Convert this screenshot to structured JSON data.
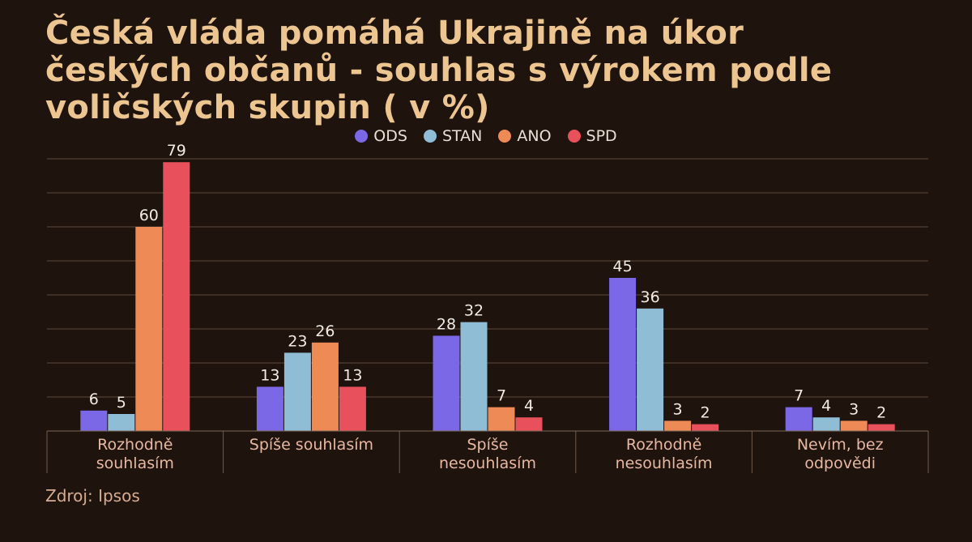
{
  "title_lines": [
    "Česká vláda pomáhá Ukrajině na úkor",
    "českých občanů - souhlas s výrokem podle",
    "voličských skupin ( v %)"
  ],
  "source": "Zdroj: Ipsos",
  "chart_data": {
    "type": "bar",
    "title": "Česká vláda pomáhá Ukrajině na úkor českých občanů - souhlas s výrokem podle voličských skupin ( v %)",
    "categories": [
      [
        "Rozhodně",
        "souhlasím"
      ],
      [
        "Spíše souhlasím"
      ],
      [
        "Spíše",
        "nesouhlasím"
      ],
      [
        "Rozhodně",
        "nesouhlasím"
      ],
      [
        "Nevím, bez",
        "odpovědi"
      ]
    ],
    "series": [
      {
        "name": "ODS",
        "color": "#7b68e6",
        "values": [
          6,
          13,
          28,
          45,
          7
        ]
      },
      {
        "name": "STAN",
        "color": "#8fbdd6",
        "values": [
          5,
          23,
          32,
          36,
          4
        ]
      },
      {
        "name": "ANO",
        "color": "#ee8a56",
        "values": [
          60,
          26,
          7,
          3,
          3
        ]
      },
      {
        "name": "SPD",
        "color": "#e8505b",
        "values": [
          79,
          13,
          4,
          2,
          2
        ]
      }
    ],
    "ylim": [
      0,
      80
    ],
    "grid": true,
    "legend_position": "top-center",
    "data_labels": true
  }
}
